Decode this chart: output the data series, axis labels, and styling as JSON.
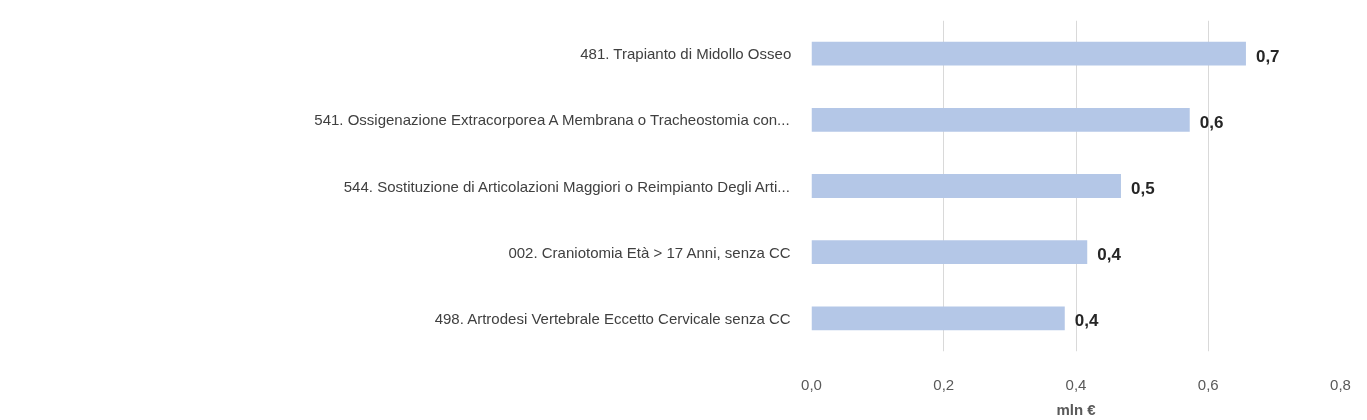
{
  "chart_data": {
    "type": "bar",
    "orientation": "horizontal",
    "xlabel": "mln €",
    "categories": [
      "481. Trapianto di Midollo Osseo",
      "541. Ossigenazione Extracorporea A Membrana o Tracheostomia con...",
      "544. Sostituzione di Articolazioni Maggiori o Reimpianto Degli Arti...",
      "002. Craniotomia Età > 17 Anni, senza CC",
      "498. Artrodesi Vertebrale Eccetto Cervicale senza CC"
    ],
    "values": [
      0.657,
      0.572,
      0.468,
      0.417,
      0.383
    ],
    "value_labels": [
      "0,7",
      "0,6",
      "0,5",
      "0,4",
      "0,4"
    ],
    "color": "#b4c7e7",
    "xlim": [
      0,
      0.8
    ],
    "xticks": [
      {
        "value": 0,
        "label": "0,0"
      },
      {
        "value": 0.2,
        "label": "0,2"
      },
      {
        "value": 0.4,
        "label": "0,4"
      },
      {
        "value": 0.6,
        "label": "0,6"
      },
      {
        "value": 0.8,
        "label": "0,8"
      }
    ],
    "grid": "x"
  }
}
